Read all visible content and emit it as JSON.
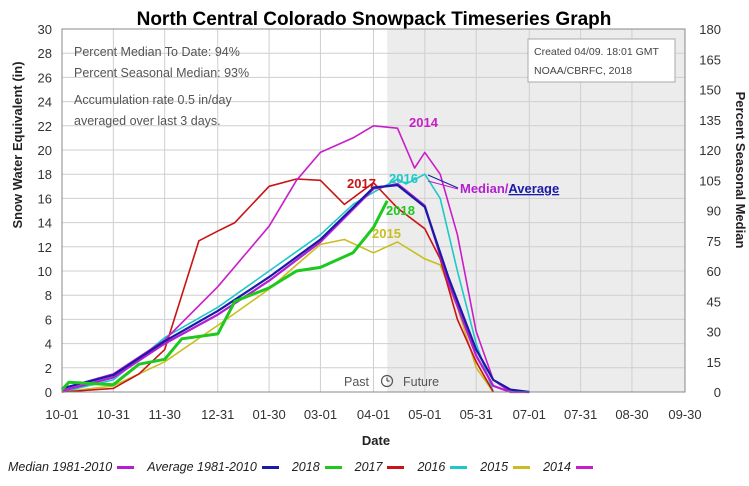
{
  "title": "North Central Colorado Snowpack Timeseries Graph",
  "stats": {
    "line1": "Percent Median To Date: 94%",
    "line2": "Percent Seasonal Median: 93%",
    "line3": "Accumulation rate 0.5 in/day",
    "line4": "averaged over last 3 days."
  },
  "credit": {
    "line1": "Created 04/09. 18:01 GMT",
    "line2": "NOAA/CBRFC, 2018"
  },
  "labels": {
    "past": "Past",
    "future": "Future",
    "median_slash": "Median/",
    "average": "Average"
  },
  "colors": {
    "median": "#b41ed2",
    "average": "#1a1aa8",
    "y2018": "#1ec81e",
    "y2017": "#c81414",
    "y2016": "#1ec8c8",
    "y2015": "#c8be1e",
    "y2014": "#c81ec8"
  },
  "chart_data": {
    "type": "line",
    "title": "North Central Colorado Snowpack Timeseries Graph",
    "xlabel": "Date",
    "ylabel": "Snow Water Equivalent (in)",
    "y2label": "Percent Seasonal Median",
    "ylim": [
      0,
      30
    ],
    "y2lim": [
      0,
      180
    ],
    "x_ticks": [
      "10-01",
      "10-31",
      "11-30",
      "12-31",
      "01-30",
      "03-01",
      "04-01",
      "05-01",
      "05-31",
      "07-01",
      "07-31",
      "08-30",
      "09-30"
    ],
    "y_ticks": [
      "0",
      "2",
      "4",
      "6",
      "8",
      "10",
      "12",
      "14",
      "16",
      "18",
      "20",
      "22",
      "24",
      "26",
      "28",
      "30"
    ],
    "y2_ticks": [
      "0",
      "15",
      "30",
      "45",
      "60",
      "75",
      "90",
      "105",
      "120",
      "135",
      "150",
      "165",
      "180"
    ],
    "grid": true,
    "future_shading_from": "04-09",
    "series": [
      {
        "name": "Median 1981-2010",
        "x": [
          "10-01",
          "10-31",
          "11-30",
          "12-31",
          "01-30",
          "03-01",
          "04-01",
          "04-15",
          "05-01",
          "05-15",
          "05-31",
          "06-10",
          "06-20",
          "07-01"
        ],
        "values": [
          0.1,
          1.2,
          4,
          6.4,
          9.2,
          12.4,
          16.8,
          17.2,
          15.4,
          9,
          3,
          0.5,
          0,
          0
        ]
      },
      {
        "name": "Average 1981-2010",
        "x": [
          "10-01",
          "10-31",
          "11-30",
          "12-31",
          "01-30",
          "03-01",
          "04-01",
          "04-15",
          "05-01",
          "05-15",
          "05-31",
          "06-10",
          "06-20",
          "07-01"
        ],
        "values": [
          0.3,
          1.4,
          4.2,
          6.7,
          9.5,
          12.6,
          16.9,
          17.1,
          15.3,
          9.4,
          3.5,
          1,
          0.2,
          0
        ]
      },
      {
        "name": "2018",
        "x": [
          "10-01",
          "10-05",
          "10-31",
          "11-15",
          "11-30",
          "12-10",
          "12-31",
          "01-10",
          "01-30",
          "02-15",
          "03-01",
          "03-20",
          "04-01",
          "04-09"
        ],
        "values": [
          0.2,
          0.8,
          0.6,
          2.3,
          2.7,
          4.4,
          4.8,
          7.5,
          8.6,
          10,
          10.3,
          11.5,
          13.6,
          15.8
        ]
      },
      {
        "name": "2017",
        "x": [
          "10-01",
          "10-31",
          "11-15",
          "11-30",
          "12-10",
          "12-20",
          "12-31",
          "01-10",
          "01-30",
          "02-15",
          "03-01",
          "03-15",
          "04-01",
          "04-15",
          "05-01",
          "05-10",
          "05-20",
          "05-31",
          "06-10"
        ],
        "values": [
          0,
          0.3,
          1.5,
          3.5,
          8,
          12.5,
          13.3,
          14,
          17,
          17.6,
          17.5,
          15.5,
          17.3,
          15.2,
          13.5,
          11,
          6,
          2.5,
          0
        ]
      },
      {
        "name": "2016",
        "x": [
          "10-01",
          "10-31",
          "11-30",
          "12-31",
          "01-30",
          "03-01",
          "03-20",
          "04-01",
          "04-15",
          "04-20",
          "05-01",
          "05-10",
          "05-20",
          "05-31",
          "06-10"
        ],
        "values": [
          0,
          1,
          4.5,
          7,
          10,
          13,
          15.5,
          16.5,
          17.6,
          17.2,
          18,
          16,
          10,
          4,
          0
        ]
      },
      {
        "name": "2015",
        "x": [
          "10-01",
          "10-31",
          "11-30",
          "12-31",
          "01-30",
          "02-15",
          "03-01",
          "03-15",
          "04-01",
          "04-15",
          "05-01",
          "05-10",
          "05-20",
          "05-31",
          "06-10"
        ],
        "values": [
          0,
          0.5,
          2.5,
          5.5,
          8.5,
          10.5,
          12.2,
          12.6,
          11.5,
          12.4,
          11,
          10.5,
          7,
          2,
          0
        ]
      },
      {
        "name": "2014",
        "x": [
          "10-01",
          "10-31",
          "11-30",
          "12-31",
          "01-30",
          "02-15",
          "03-01",
          "03-20",
          "04-01",
          "04-15",
          "04-25",
          "05-01",
          "05-10",
          "05-20",
          "05-31",
          "06-10",
          "06-20"
        ],
        "values": [
          0.3,
          1.5,
          4.3,
          8.7,
          13.7,
          17.5,
          19.8,
          21,
          22,
          21.8,
          18.5,
          19.8,
          18,
          13,
          5,
          1,
          0
        ]
      }
    ]
  },
  "legend": [
    {
      "label": "Median 1981-2010",
      "color": "#b41ed2"
    },
    {
      "label": "Average 1981-2010",
      "color": "#1a1aa8"
    },
    {
      "label": "2018",
      "color": "#1ec81e"
    },
    {
      "label": "2017",
      "color": "#c81414"
    },
    {
      "label": "2016",
      "color": "#1ec8c8"
    },
    {
      "label": "2015",
      "color": "#c8be1e"
    },
    {
      "label": "2014",
      "color": "#c81ec8"
    }
  ],
  "inline_labels": [
    "2014",
    "2017",
    "2016",
    "2018",
    "2015"
  ]
}
